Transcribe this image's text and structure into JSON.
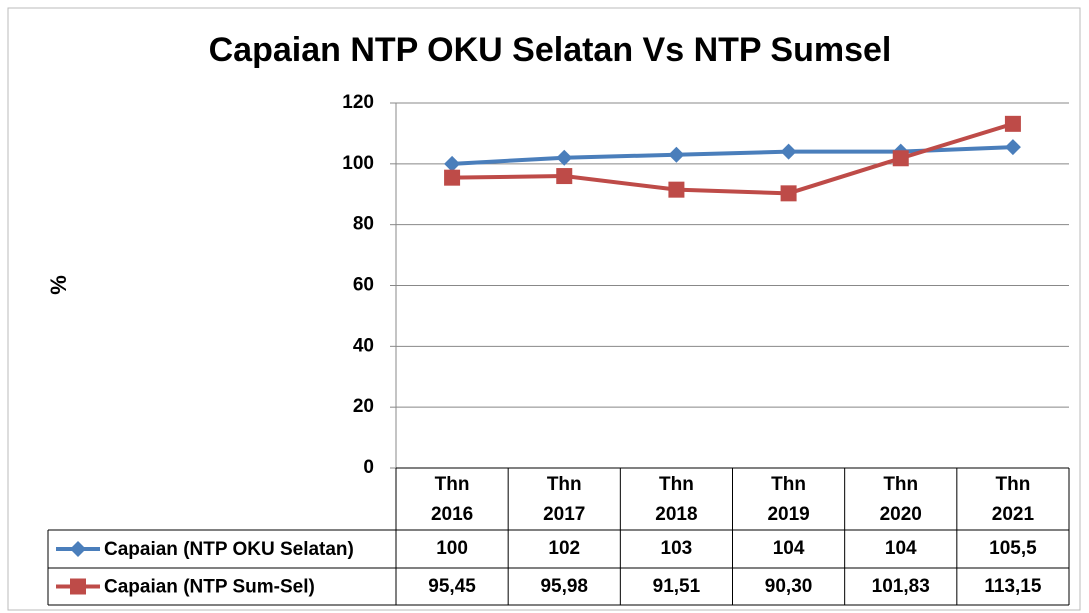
{
  "chart_data": {
    "type": "line",
    "title": "Capaian NTP OKU Selatan Vs NTP Sumsel",
    "y_label": "%",
    "categories": [
      "Thn 2016",
      "Thn 2017",
      "Thn 2018",
      "Thn 2019",
      "Thn 2020",
      "Thn 2021"
    ],
    "series": [
      {
        "name": "Capaian (NTP OKU Selatan)",
        "color": "#4a7ebb",
        "marker": "diamond",
        "values": [
          100,
          102,
          103,
          104,
          104,
          105.5
        ],
        "value_labels": [
          "100",
          "102",
          "103",
          "104",
          "104",
          "105,5"
        ]
      },
      {
        "name": "Capaian (NTP Sum-Sel)",
        "color": "#be4b48",
        "marker": "square",
        "values": [
          95.45,
          95.98,
          91.51,
          90.3,
          101.83,
          113.15
        ],
        "value_labels": [
          "95,45",
          "95,98",
          "91,51",
          "90,30",
          "101,83",
          "113,15"
        ]
      }
    ],
    "ylim": [
      0,
      120
    ],
    "yticks": [
      0,
      20,
      40,
      60,
      80,
      100,
      120
    ],
    "grid": true
  }
}
